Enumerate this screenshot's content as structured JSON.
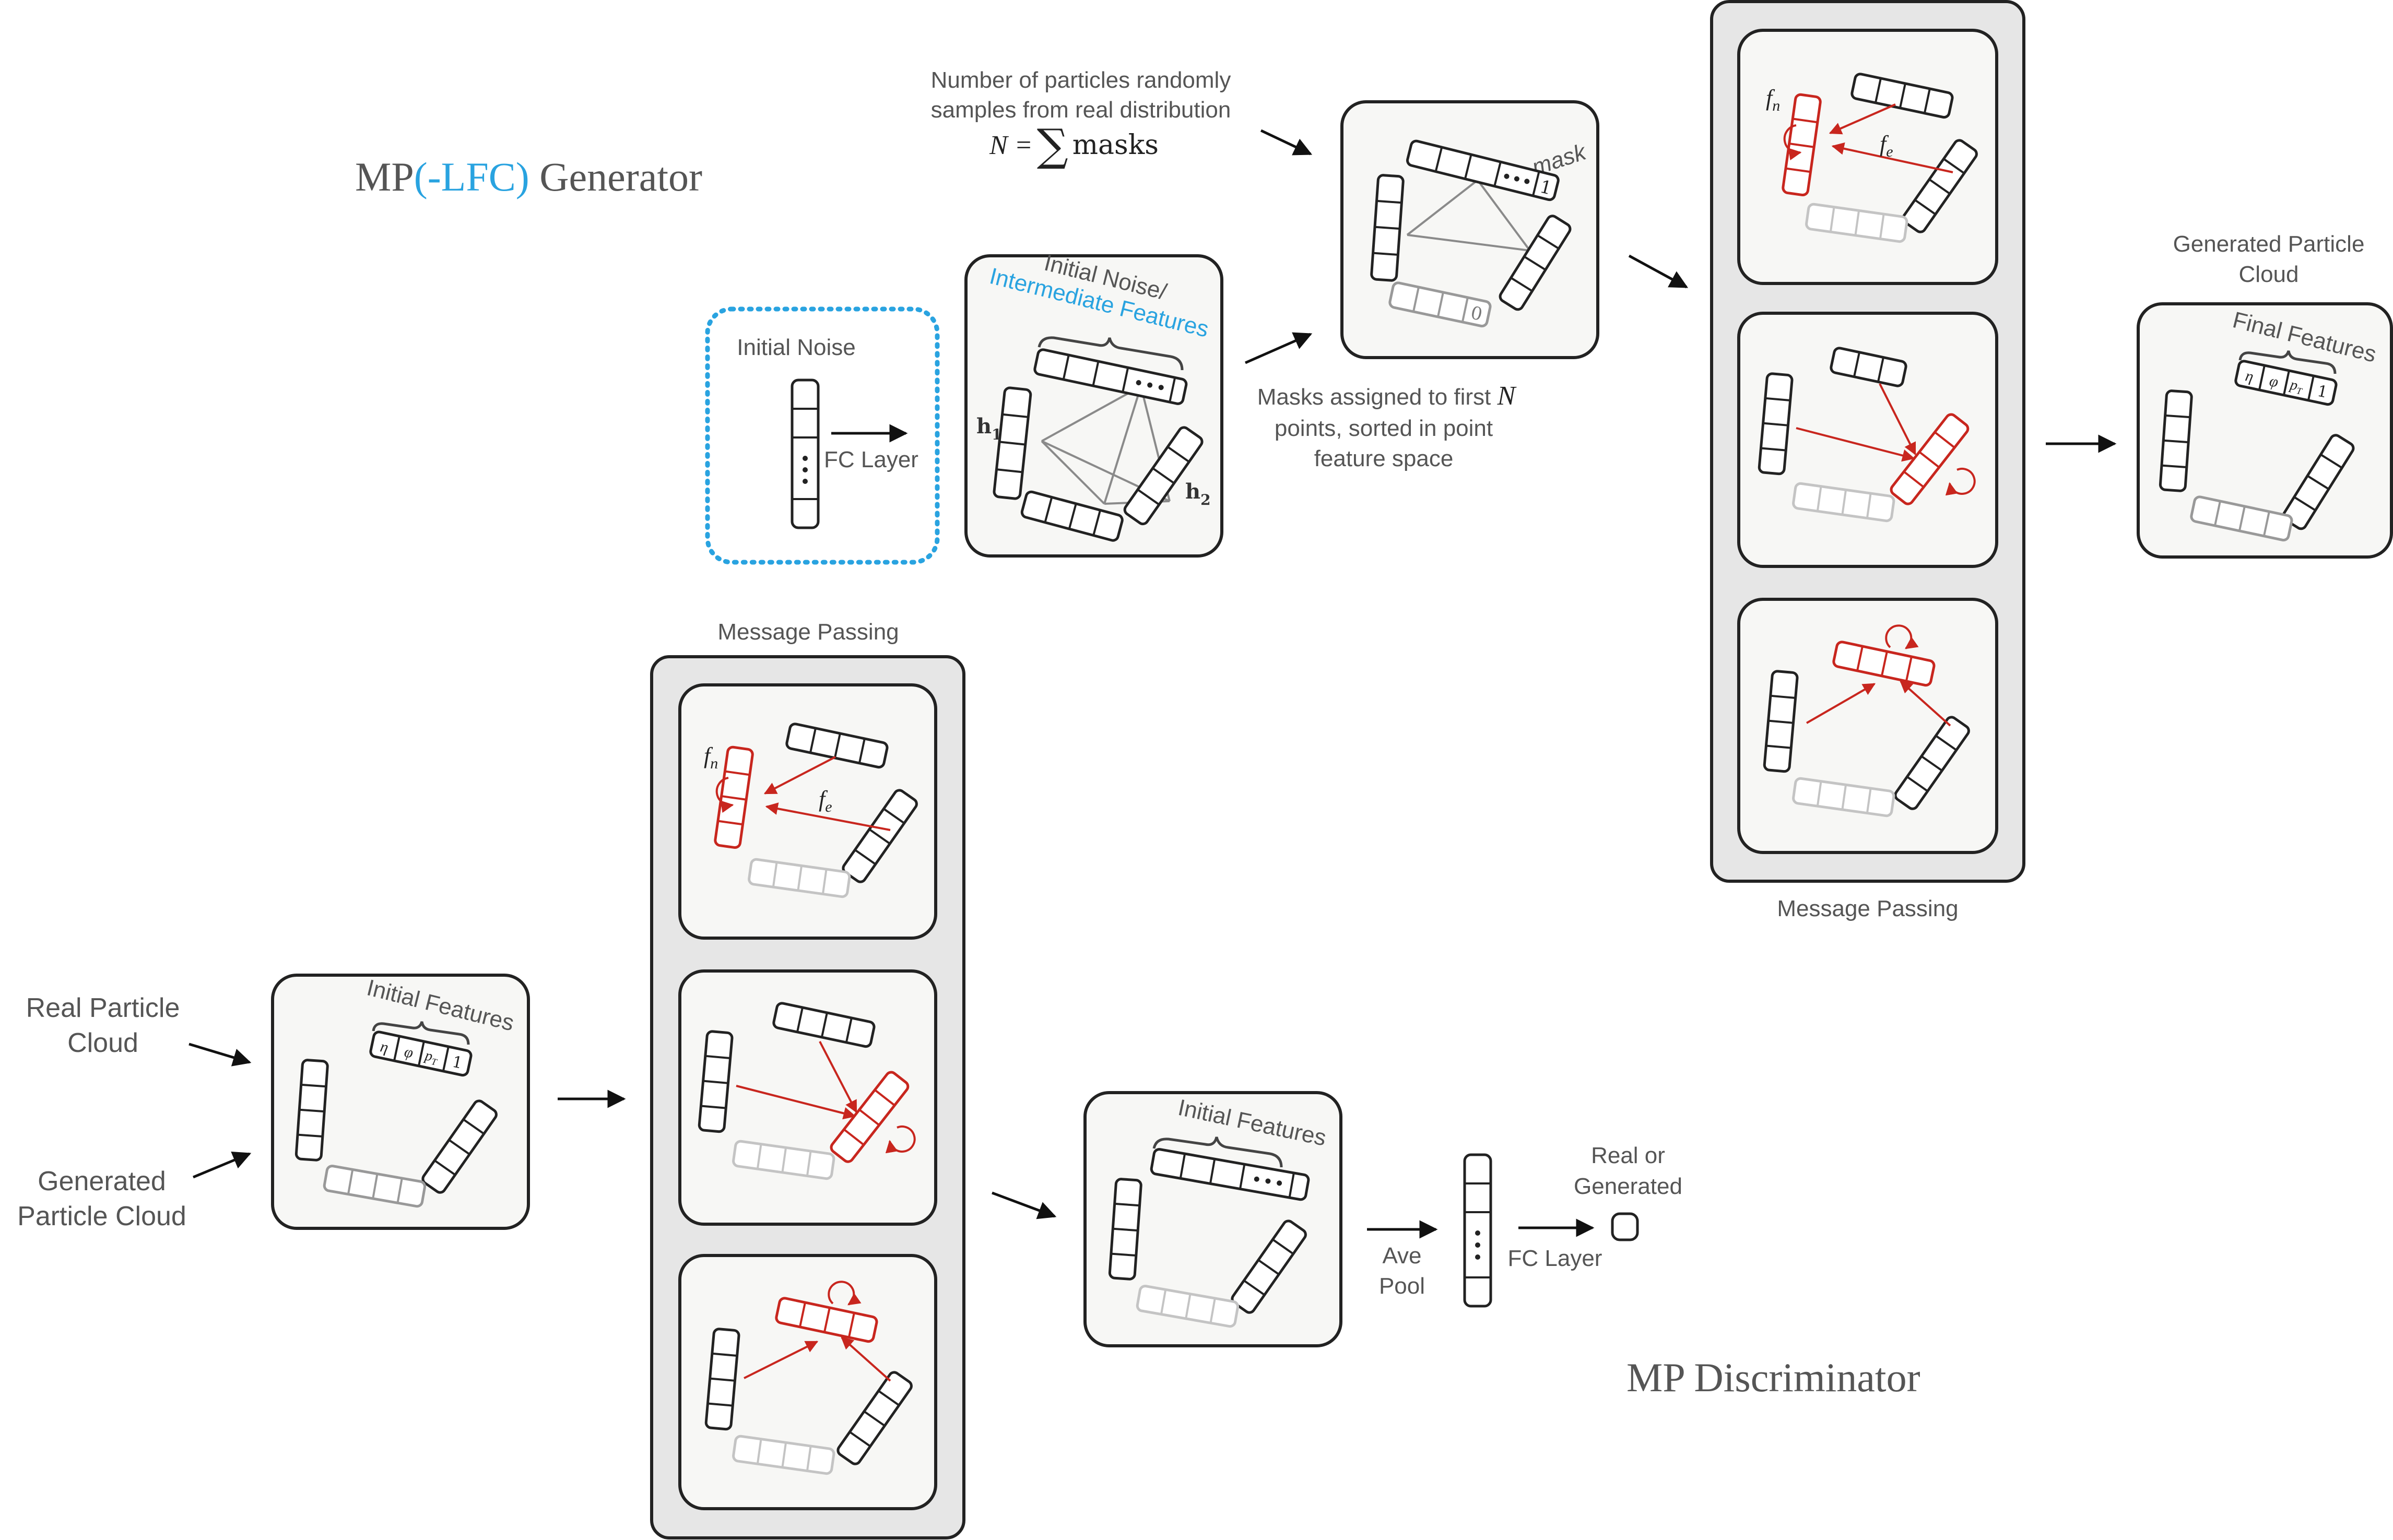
{
  "titles": {
    "generator_prefix": "MP",
    "generator_accent": "(-LFC)",
    "generator_suffix": " Generator",
    "discriminator": "MP Discriminator"
  },
  "generator": {
    "initial_noise": "Initial Noise",
    "fc_layer": "FC Layer",
    "noise_box_title_1": "Initial Noise/",
    "noise_box_title_2": "Intermediate Features",
    "h1": "h",
    "h1_sub": "1",
    "h2": "h",
    "h2_sub": "2",
    "num_particles_line1": "Number of particles randomly",
    "num_particles_line2": "samples from real distribution",
    "n_equation_lhs": "N =",
    "n_equation_sum": "∑",
    "n_equation_rhs": "masks",
    "mask_label": "mask",
    "mask_one": "1",
    "mask_zero": "0",
    "masks_note_line1": "Masks assigned to first",
    "masks_note_N": "N",
    "masks_note_line2": "points, sorted in point",
    "masks_note_line3": "feature space",
    "message_passing": "Message Passing",
    "fn": "f",
    "fn_sub": "n",
    "fe": "f",
    "fe_sub": "e",
    "generated_cloud_line1": "Generated Particle",
    "generated_cloud_line2": "Cloud",
    "final_features": "Final Features"
  },
  "discriminator": {
    "real_cloud_line1": "Real Particle",
    "real_cloud_line2": "Cloud",
    "generated_cloud_line1": "Generated",
    "generated_cloud_line2": "Particle Cloud",
    "initial_features": "Initial Features",
    "message_passing": "Message Passing",
    "fn": "f",
    "fn_sub": "n",
    "fe": "f",
    "fe_sub": "e",
    "initial_features_2": "Initial Features",
    "ave_pool_line1": "Ave",
    "ave_pool_line2": "Pool",
    "fc_layer": "FC Layer",
    "output_line1": "Real or",
    "output_line2": "Generated"
  },
  "feature_cells": {
    "eta": "η",
    "phi": "φ",
    "pt": "p",
    "pt_sub": "T",
    "one": "1"
  },
  "colors": {
    "accent_blue": "#29a3e0",
    "message_red": "#c8261e",
    "box_fill": "#f7f7f5",
    "panel_fill": "#e6e6e6",
    "stroke": "#222222",
    "faded": "#bbbbbb",
    "edge_gray": "#8a8a8a"
  }
}
